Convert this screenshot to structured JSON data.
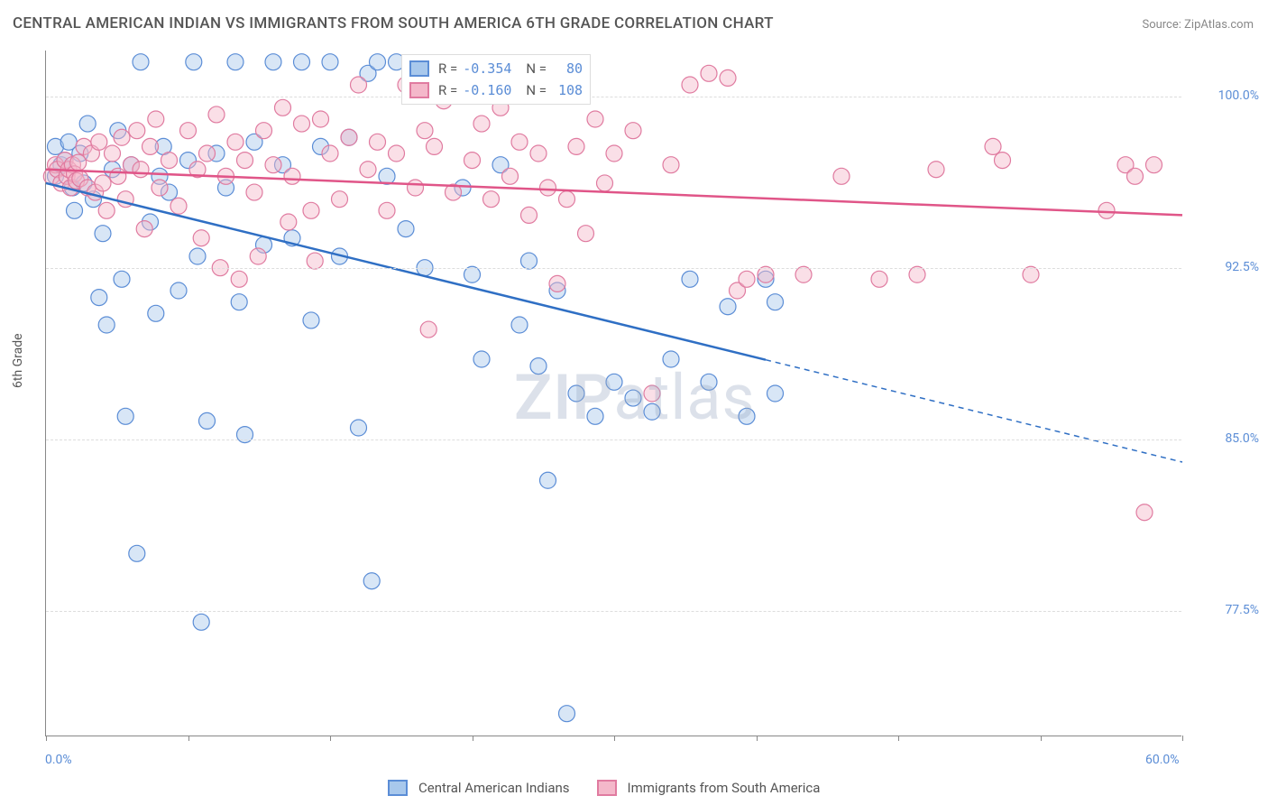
{
  "title": "CENTRAL AMERICAN INDIAN VS IMMIGRANTS FROM SOUTH AMERICA 6TH GRADE CORRELATION CHART",
  "source": "Source: ZipAtlas.com",
  "ylabel": "6th Grade",
  "watermark": {
    "bold": "ZIP",
    "light": "atlas"
  },
  "chart": {
    "type": "scatter",
    "xlim": [
      0,
      60
    ],
    "ylim": [
      72,
      102
    ],
    "x_unit": "%",
    "y_unit": "%",
    "xticks": [
      0,
      7.5,
      15,
      22.5,
      30,
      37.5,
      45,
      52.5,
      60
    ],
    "xtick_labels": {
      "0": "0.0%",
      "60": "60.0%"
    },
    "yticks": [
      77.5,
      85.0,
      92.5,
      100.0
    ],
    "ytick_labels": [
      "77.5%",
      "85.0%",
      "92.5%",
      "100.0%"
    ],
    "background_color": "#ffffff",
    "grid_color": "#dddddd",
    "axis_color": "#888888",
    "tick_label_color": "#5b8dd6",
    "marker_radius": 9,
    "marker_opacity": 0.45,
    "line_width": 2.5,
    "series": [
      {
        "name": "Central American Indians",
        "color_fill": "#a8c8ec",
        "color_stroke": "#5b8dd6",
        "line_color": "#2f6fc4",
        "R": "-0.354",
        "N": "80",
        "trend": {
          "x1": 0,
          "y1": 96.2,
          "x2": 60,
          "y2": 84.0,
          "solid_until_x": 38
        },
        "points": [
          [
            0.5,
            97.8
          ],
          [
            0.5,
            96.5
          ],
          [
            0.8,
            97.0
          ],
          [
            1.0,
            97.2
          ],
          [
            1.2,
            98.0
          ],
          [
            1.4,
            96.0
          ],
          [
            1.5,
            95.0
          ],
          [
            1.8,
            97.5
          ],
          [
            2.0,
            96.2
          ],
          [
            2.2,
            98.8
          ],
          [
            2.5,
            95.5
          ],
          [
            2.8,
            91.2
          ],
          [
            3.0,
            94.0
          ],
          [
            3.2,
            90.0
          ],
          [
            3.5,
            96.8
          ],
          [
            3.8,
            98.5
          ],
          [
            4.0,
            92.0
          ],
          [
            4.2,
            86.0
          ],
          [
            4.5,
            97.0
          ],
          [
            4.8,
            80.0
          ],
          [
            5.0,
            101.5
          ],
          [
            5.5,
            94.5
          ],
          [
            5.8,
            90.5
          ],
          [
            6.0,
            96.5
          ],
          [
            6.2,
            97.8
          ],
          [
            6.5,
            95.8
          ],
          [
            7.0,
            91.5
          ],
          [
            7.5,
            97.2
          ],
          [
            7.8,
            101.5
          ],
          [
            8.0,
            93.0
          ],
          [
            8.2,
            77.0
          ],
          [
            8.5,
            85.8
          ],
          [
            9.0,
            97.5
          ],
          [
            9.5,
            96.0
          ],
          [
            10.0,
            101.5
          ],
          [
            10.2,
            91.0
          ],
          [
            10.5,
            85.2
          ],
          [
            11.0,
            98.0
          ],
          [
            11.5,
            93.5
          ],
          [
            12.0,
            101.5
          ],
          [
            12.5,
            97.0
          ],
          [
            13.0,
            93.8
          ],
          [
            13.5,
            101.5
          ],
          [
            14.0,
            90.2
          ],
          [
            14.5,
            97.8
          ],
          [
            15.0,
            101.5
          ],
          [
            15.5,
            93.0
          ],
          [
            16.0,
            98.2
          ],
          [
            16.5,
            85.5
          ],
          [
            17.0,
            101.0
          ],
          [
            17.2,
            78.8
          ],
          [
            17.5,
            101.5
          ],
          [
            18.0,
            96.5
          ],
          [
            18.5,
            101.5
          ],
          [
            19.0,
            94.2
          ],
          [
            20.0,
            92.5
          ],
          [
            21.0,
            101.0
          ],
          [
            22.0,
            96.0
          ],
          [
            22.5,
            92.2
          ],
          [
            23.0,
            88.5
          ],
          [
            24.0,
            97.0
          ],
          [
            25.0,
            90.0
          ],
          [
            25.5,
            92.8
          ],
          [
            26.0,
            88.2
          ],
          [
            26.5,
            83.2
          ],
          [
            27.0,
            91.5
          ],
          [
            27.5,
            73.0
          ],
          [
            28.0,
            87.0
          ],
          [
            29.0,
            86.0
          ],
          [
            30.0,
            87.5
          ],
          [
            31.0,
            86.8
          ],
          [
            32.0,
            86.2
          ],
          [
            33.0,
            88.5
          ],
          [
            34.0,
            92.0
          ],
          [
            35.0,
            87.5
          ],
          [
            36.0,
            90.8
          ],
          [
            37.0,
            86.0
          ],
          [
            38.0,
            92.0
          ],
          [
            38.5,
            87.0
          ],
          [
            38.5,
            91.0
          ]
        ]
      },
      {
        "name": "Immigrants from South America",
        "color_fill": "#f4b8ca",
        "color_stroke": "#e07ba0",
        "line_color": "#e05588",
        "R": "-0.160",
        "N": "108",
        "trend": {
          "x1": 0,
          "y1": 96.8,
          "x2": 60,
          "y2": 94.8,
          "solid_until_x": 60
        },
        "points": [
          [
            0.3,
            96.5
          ],
          [
            0.5,
            97.0
          ],
          [
            0.6,
            96.8
          ],
          [
            0.8,
            96.2
          ],
          [
            1.0,
            97.2
          ],
          [
            1.1,
            96.5
          ],
          [
            1.2,
            96.8
          ],
          [
            1.3,
            96.0
          ],
          [
            1.4,
            97.0
          ],
          [
            1.5,
            96.6
          ],
          [
            1.6,
            96.3
          ],
          [
            1.7,
            97.1
          ],
          [
            1.8,
            96.4
          ],
          [
            2.0,
            97.8
          ],
          [
            2.2,
            96.0
          ],
          [
            2.4,
            97.5
          ],
          [
            2.6,
            95.8
          ],
          [
            2.8,
            98.0
          ],
          [
            3.0,
            96.2
          ],
          [
            3.2,
            95.0
          ],
          [
            3.5,
            97.5
          ],
          [
            3.8,
            96.5
          ],
          [
            4.0,
            98.2
          ],
          [
            4.2,
            95.5
          ],
          [
            4.5,
            97.0
          ],
          [
            4.8,
            98.5
          ],
          [
            5.0,
            96.8
          ],
          [
            5.2,
            94.2
          ],
          [
            5.5,
            97.8
          ],
          [
            5.8,
            99.0
          ],
          [
            6.0,
            96.0
          ],
          [
            6.5,
            97.2
          ],
          [
            7.0,
            95.2
          ],
          [
            7.5,
            98.5
          ],
          [
            8.0,
            96.8
          ],
          [
            8.2,
            93.8
          ],
          [
            8.5,
            97.5
          ],
          [
            9.0,
            99.2
          ],
          [
            9.2,
            92.5
          ],
          [
            9.5,
            96.5
          ],
          [
            10.0,
            98.0
          ],
          [
            10.2,
            92.0
          ],
          [
            10.5,
            97.2
          ],
          [
            11.0,
            95.8
          ],
          [
            11.2,
            93.0
          ],
          [
            11.5,
            98.5
          ],
          [
            12.0,
            97.0
          ],
          [
            12.5,
            99.5
          ],
          [
            12.8,
            94.5
          ],
          [
            13.0,
            96.5
          ],
          [
            13.5,
            98.8
          ],
          [
            14.0,
            95.0
          ],
          [
            14.2,
            92.8
          ],
          [
            14.5,
            99.0
          ],
          [
            15.0,
            97.5
          ],
          [
            15.5,
            95.5
          ],
          [
            16.0,
            98.2
          ],
          [
            16.5,
            100.5
          ],
          [
            17.0,
            96.8
          ],
          [
            17.5,
            98.0
          ],
          [
            18.0,
            95.0
          ],
          [
            18.5,
            97.5
          ],
          [
            19.0,
            100.5
          ],
          [
            19.5,
            96.0
          ],
          [
            20.0,
            98.5
          ],
          [
            20.2,
            89.8
          ],
          [
            20.5,
            97.8
          ],
          [
            21.0,
            99.8
          ],
          [
            21.5,
            95.8
          ],
          [
            22.0,
            100.5
          ],
          [
            22.5,
            97.2
          ],
          [
            23.0,
            98.8
          ],
          [
            23.5,
            95.5
          ],
          [
            24.0,
            99.5
          ],
          [
            24.5,
            96.5
          ],
          [
            25.0,
            98.0
          ],
          [
            25.5,
            94.8
          ],
          [
            26.0,
            97.5
          ],
          [
            26.5,
            96.0
          ],
          [
            27.0,
            91.8
          ],
          [
            27.5,
            95.5
          ],
          [
            28.0,
            97.8
          ],
          [
            28.5,
            94.0
          ],
          [
            29.0,
            99.0
          ],
          [
            29.5,
            96.2
          ],
          [
            30.0,
            97.5
          ],
          [
            31.0,
            98.5
          ],
          [
            32.0,
            87.0
          ],
          [
            33.0,
            97.0
          ],
          [
            34.0,
            100.5
          ],
          [
            35.0,
            101.0
          ],
          [
            36.0,
            100.8
          ],
          [
            36.5,
            91.5
          ],
          [
            37.0,
            92.0
          ],
          [
            38.0,
            92.2
          ],
          [
            40.0,
            92.2
          ],
          [
            42.0,
            96.5
          ],
          [
            44.0,
            92.0
          ],
          [
            46.0,
            92.2
          ],
          [
            47.0,
            96.8
          ],
          [
            50.0,
            97.8
          ],
          [
            50.5,
            97.2
          ],
          [
            52.0,
            92.2
          ],
          [
            56.0,
            95.0
          ],
          [
            57.0,
            97.0
          ],
          [
            57.5,
            96.5
          ],
          [
            58.0,
            81.8
          ],
          [
            58.5,
            97.0
          ]
        ]
      }
    ]
  },
  "legend_bottom": [
    {
      "label": "Central American Indians",
      "fill": "#a8c8ec",
      "stroke": "#5b8dd6"
    },
    {
      "label": "Immigrants from South America",
      "fill": "#f4b8ca",
      "stroke": "#e07ba0"
    }
  ]
}
